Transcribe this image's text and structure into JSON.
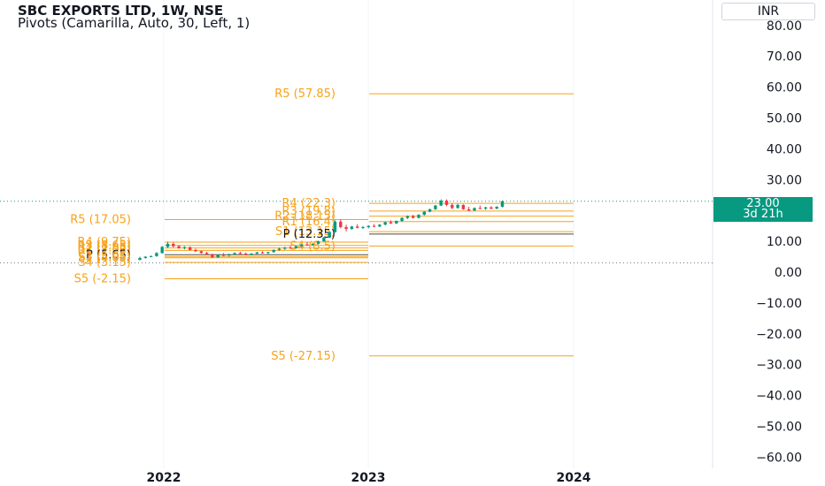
{
  "header": {
    "title": "SBC EXPORTS LTD, 1W, NSE",
    "indicator": "Pivots (Camarilla, Auto, 30, Left, 1)"
  },
  "currency": "INR",
  "last_price": {
    "value": "23.00",
    "countdown": "3d 21h"
  },
  "colors": {
    "pivot_line": "#f7a21b",
    "pivot_text": "#f7a21b",
    "up": "#089981",
    "down": "#f23645",
    "axis_text": "#131722",
    "grid": "#f0f3fa"
  },
  "chart_data": {
    "type": "candlestick",
    "title": "SBC EXPORTS LTD, 1W, NSE",
    "y_axis": {
      "side": "right",
      "min": -60,
      "max": 80,
      "ticks": [
        "80.00",
        "70.00",
        "60.00",
        "50.00",
        "40.00",
        "30.00",
        "20.00",
        "10.00",
        "0.00",
        "−10.00",
        "−20.00",
        "−30.00",
        "−40.00",
        "−50.00",
        "−60.00"
      ]
    },
    "x_axis": {
      "ticks": [
        "2022",
        "2023",
        "2024"
      ]
    },
    "pivot_periods": [
      {
        "period": "2021",
        "levels": [
          {
            "name": "R5",
            "value": 17.05,
            "label": "R5 (17.05)"
          },
          {
            "name": "R4",
            "value": 9.75,
            "label": "R4 (9.75)"
          },
          {
            "name": "R3",
            "value": 8.65,
            "label": "R3 (8.65)"
          },
          {
            "name": "R2",
            "value": 7.85,
            "label": "R2 (7.85)"
          },
          {
            "name": "R1",
            "value": 7.05,
            "label": "R1 (7.05)"
          },
          {
            "name": "P",
            "value": 5.65,
            "label": "P (5.65)"
          },
          {
            "name": "S1",
            "value": 4.65,
            "label": "S1 (4.65)"
          },
          {
            "name": "S3",
            "value": 5.05,
            "label": "S3 (5.05)"
          },
          {
            "name": "S4",
            "value": 3.15,
            "label": "S4 (3.15)"
          },
          {
            "name": "S5",
            "value": -2.15,
            "label": "S5 (-2.15)"
          }
        ]
      },
      {
        "period": "2022",
        "levels": [
          {
            "name": "R5",
            "value": 57.85,
            "label": "R5 (57.85)"
          },
          {
            "name": "R4",
            "value": 22.3,
            "label": "R4 (22.3)"
          },
          {
            "name": "R3",
            "value": 19.8,
            "label": "R3 (19.8)"
          },
          {
            "name": "R2",
            "value": 18.15,
            "label": "R2 (18.15)"
          },
          {
            "name": "R1",
            "value": 16.4,
            "label": "R1 (16.4)"
          },
          {
            "name": "S1",
            "value": 13.15,
            "label": "S1 (13.15)"
          },
          {
            "name": "P",
            "value": 12.35,
            "label": "P (12.35)"
          },
          {
            "name": "S4",
            "value": 8.5,
            "label": "S4 (8.5)"
          },
          {
            "name": "S5",
            "value": -27.15,
            "label": "S5 (-27.15)"
          }
        ]
      }
    ],
    "candles_note": "weekly OHLC approximated from image",
    "candles": [
      {
        "o": 4.0,
        "h": 5.0,
        "l": 3.8,
        "c": 4.6
      },
      {
        "o": 4.6,
        "h": 5.2,
        "l": 4.4,
        "c": 5.0
      },
      {
        "o": 5.0,
        "h": 5.4,
        "l": 4.8,
        "c": 5.2
      },
      {
        "o": 5.2,
        "h": 6.5,
        "l": 5.0,
        "c": 6.2
      },
      {
        "o": 6.2,
        "h": 8.5,
        "l": 6.0,
        "c": 8.2
      },
      {
        "o": 8.2,
        "h": 9.8,
        "l": 7.8,
        "c": 9.2
      },
      {
        "o": 9.2,
        "h": 9.6,
        "l": 8.0,
        "c": 8.4
      },
      {
        "o": 8.4,
        "h": 8.8,
        "l": 7.6,
        "c": 7.8
      },
      {
        "o": 7.8,
        "h": 8.4,
        "l": 7.4,
        "c": 8.1
      },
      {
        "o": 8.1,
        "h": 8.3,
        "l": 7.0,
        "c": 7.2
      },
      {
        "o": 7.2,
        "h": 7.6,
        "l": 6.6,
        "c": 6.8
      },
      {
        "o": 6.8,
        "h": 7.0,
        "l": 6.0,
        "c": 6.2
      },
      {
        "o": 6.2,
        "h": 6.6,
        "l": 5.6,
        "c": 5.8
      },
      {
        "o": 5.8,
        "h": 6.0,
        "l": 4.6,
        "c": 4.8
      },
      {
        "o": 4.8,
        "h": 5.8,
        "l": 4.6,
        "c": 5.6
      },
      {
        "o": 5.6,
        "h": 6.2,
        "l": 5.2,
        "c": 5.4
      },
      {
        "o": 5.4,
        "h": 6.0,
        "l": 5.0,
        "c": 5.8
      },
      {
        "o": 5.8,
        "h": 6.4,
        "l": 5.6,
        "c": 6.2
      },
      {
        "o": 6.2,
        "h": 6.6,
        "l": 5.8,
        "c": 6.0
      },
      {
        "o": 6.0,
        "h": 6.4,
        "l": 5.4,
        "c": 5.6
      },
      {
        "o": 5.6,
        "h": 6.2,
        "l": 5.4,
        "c": 6.0
      },
      {
        "o": 6.0,
        "h": 6.6,
        "l": 5.8,
        "c": 6.4
      },
      {
        "o": 6.4,
        "h": 6.8,
        "l": 6.0,
        "c": 6.2
      },
      {
        "o": 6.2,
        "h": 6.6,
        "l": 5.8,
        "c": 6.5
      },
      {
        "o": 6.5,
        "h": 7.4,
        "l": 6.3,
        "c": 7.2
      },
      {
        "o": 7.2,
        "h": 8.0,
        "l": 7.0,
        "c": 7.6
      },
      {
        "o": 7.6,
        "h": 8.2,
        "l": 7.2,
        "c": 8.0
      },
      {
        "o": 8.0,
        "h": 8.6,
        "l": 7.6,
        "c": 7.8
      },
      {
        "o": 7.8,
        "h": 8.6,
        "l": 7.6,
        "c": 8.4
      },
      {
        "o": 8.4,
        "h": 9.2,
        "l": 8.2,
        "c": 9.0
      },
      {
        "o": 9.0,
        "h": 9.8,
        "l": 8.6,
        "c": 8.8
      },
      {
        "o": 8.8,
        "h": 9.4,
        "l": 8.6,
        "c": 9.2
      },
      {
        "o": 9.2,
        "h": 10.2,
        "l": 9.0,
        "c": 10.0
      },
      {
        "o": 10.0,
        "h": 11.5,
        "l": 9.8,
        "c": 11.2
      },
      {
        "o": 11.2,
        "h": 13.2,
        "l": 11.0,
        "c": 13.0
      },
      {
        "o": 13.0,
        "h": 16.8,
        "l": 12.8,
        "c": 16.4
      },
      {
        "o": 16.4,
        "h": 17.2,
        "l": 14.2,
        "c": 14.6
      },
      {
        "o": 14.6,
        "h": 15.4,
        "l": 13.2,
        "c": 14.0
      },
      {
        "o": 14.0,
        "h": 15.0,
        "l": 13.8,
        "c": 14.8
      },
      {
        "o": 14.8,
        "h": 15.6,
        "l": 14.2,
        "c": 14.4
      },
      {
        "o": 14.4,
        "h": 15.0,
        "l": 14.0,
        "c": 14.6
      },
      {
        "o": 14.6,
        "h": 15.2,
        "l": 14.2,
        "c": 15.0
      },
      {
        "o": 15.0,
        "h": 15.6,
        "l": 14.6,
        "c": 14.8
      },
      {
        "o": 14.8,
        "h": 15.6,
        "l": 14.6,
        "c": 15.4
      },
      {
        "o": 15.4,
        "h": 16.4,
        "l": 15.2,
        "c": 16.2
      },
      {
        "o": 16.2,
        "h": 16.8,
        "l": 15.6,
        "c": 15.8
      },
      {
        "o": 15.8,
        "h": 16.8,
        "l": 15.6,
        "c": 16.6
      },
      {
        "o": 16.6,
        "h": 17.8,
        "l": 16.4,
        "c": 17.6
      },
      {
        "o": 17.6,
        "h": 18.4,
        "l": 17.2,
        "c": 18.2
      },
      {
        "o": 18.2,
        "h": 18.6,
        "l": 17.4,
        "c": 17.6
      },
      {
        "o": 17.6,
        "h": 18.8,
        "l": 17.4,
        "c": 18.6
      },
      {
        "o": 18.6,
        "h": 19.8,
        "l": 18.4,
        "c": 19.6
      },
      {
        "o": 19.6,
        "h": 20.6,
        "l": 19.4,
        "c": 20.4
      },
      {
        "o": 20.4,
        "h": 21.8,
        "l": 20.2,
        "c": 21.6
      },
      {
        "o": 21.6,
        "h": 23.6,
        "l": 21.4,
        "c": 23.2
      },
      {
        "o": 23.2,
        "h": 23.6,
        "l": 21.4,
        "c": 21.8
      },
      {
        "o": 21.8,
        "h": 22.4,
        "l": 20.4,
        "c": 20.8
      },
      {
        "o": 20.8,
        "h": 22.2,
        "l": 20.6,
        "c": 21.8
      },
      {
        "o": 21.8,
        "h": 22.0,
        "l": 20.2,
        "c": 20.4
      },
      {
        "o": 20.4,
        "h": 21.2,
        "l": 19.8,
        "c": 20.0
      },
      {
        "o": 20.0,
        "h": 21.0,
        "l": 19.8,
        "c": 20.8
      },
      {
        "o": 20.8,
        "h": 21.6,
        "l": 20.4,
        "c": 20.6
      },
      {
        "o": 20.6,
        "h": 21.2,
        "l": 20.2,
        "c": 21.0
      },
      {
        "o": 21.0,
        "h": 21.4,
        "l": 20.4,
        "c": 20.6
      },
      {
        "o": 20.6,
        "h": 21.4,
        "l": 20.4,
        "c": 21.2
      },
      {
        "o": 21.2,
        "h": 23.2,
        "l": 21.0,
        "c": 23.0
      }
    ]
  }
}
